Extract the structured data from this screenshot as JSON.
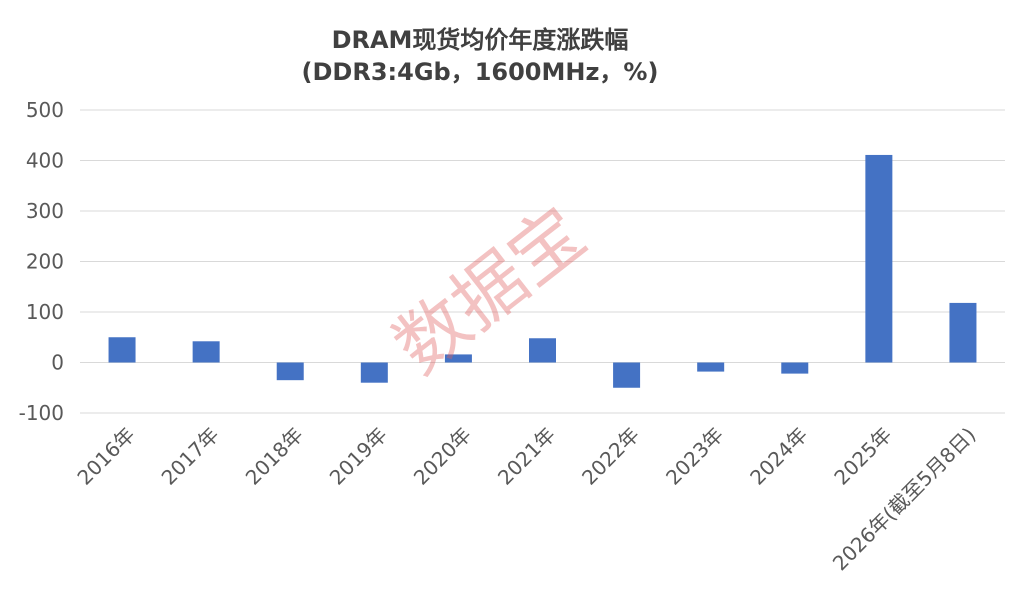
{
  "chart_data": {
    "type": "bar",
    "title": "DRAM现货均价年度涨跌幅",
    "subtitle": "(DDR3:4Gb，1600MHz，%)",
    "categories": [
      "2016年",
      "2017年",
      "2018年",
      "2019年",
      "2020年",
      "2021年",
      "2022年",
      "2023年",
      "2024年",
      "2025年",
      "2026年(截至5月8日)"
    ],
    "values": [
      50,
      42,
      -35,
      -40,
      16,
      48,
      -50,
      -18,
      -22,
      411,
      118
    ],
    "ylim": [
      -100,
      500
    ],
    "yticks": [
      -100,
      0,
      100,
      200,
      300,
      400,
      500
    ],
    "grid": true,
    "bar_color": "#4472c4",
    "watermark": "数据宝"
  }
}
